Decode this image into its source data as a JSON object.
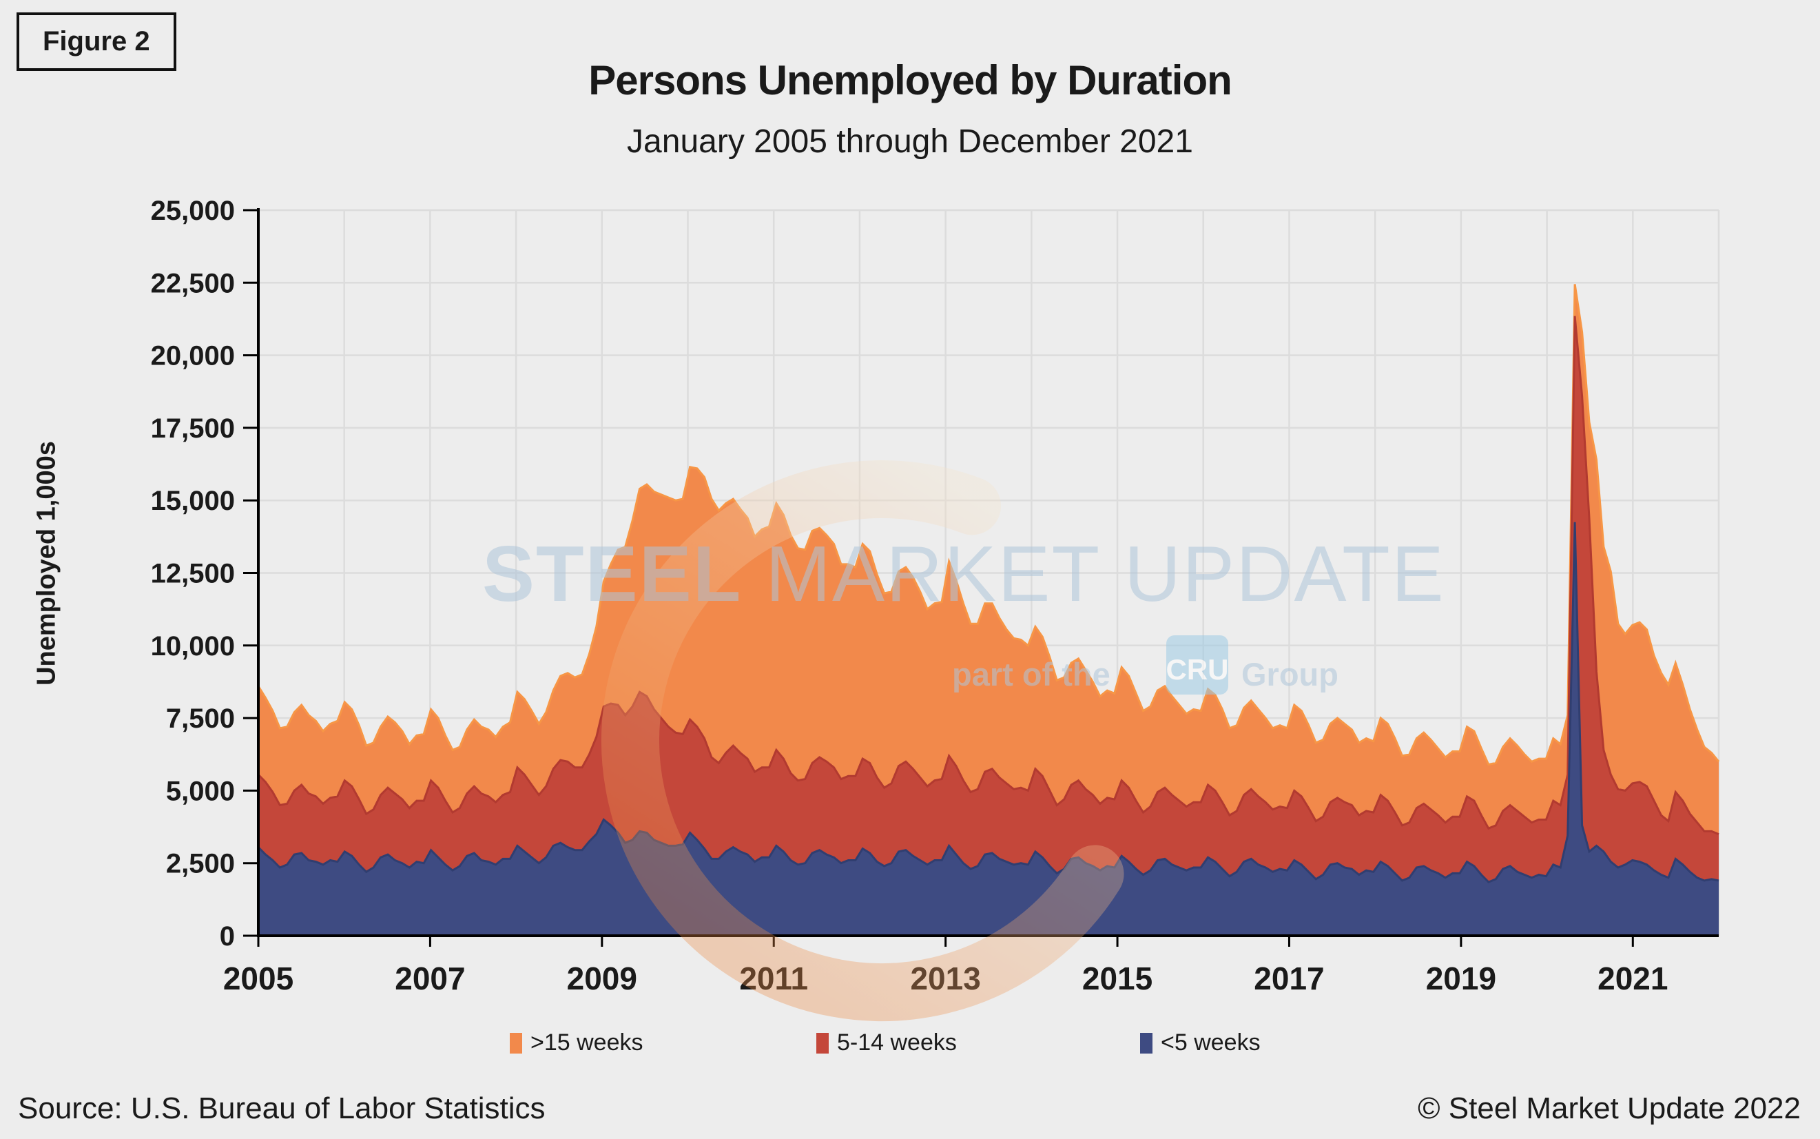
{
  "figure_label": "Figure 2",
  "title": "Persons Unemployed by Duration",
  "subtitle": "January 2005 through December 2021",
  "y_axis": {
    "title": "Unemployed 1,000s"
  },
  "legend": [
    {
      "label": ">15 weeks",
      "color": "#F2894B"
    },
    {
      "label": "5-14 weeks",
      "color": "#C4473A"
    },
    {
      "label": "<5 weeks",
      "color": "#3E4B82"
    }
  ],
  "watermark": {
    "steel": "STEEL",
    "market": "MARKET",
    "update": "UPDATE",
    "part_of": "part of the",
    "cru": "CRU",
    "group": "Group",
    "text_color": "#AFC6DA",
    "cru_box_color": "#9ECBE4",
    "crescent_top_color": "#F4E3CC",
    "crescent_bottom_color": "#EC8A44"
  },
  "footer": {
    "source": "Source: U.S. Bureau of Labor Statistics",
    "copyright": "© Steel Market Update 2022"
  },
  "chart_data": {
    "type": "area",
    "stacked": true,
    "x_start": "2005-01",
    "x_end": "2021-12",
    "months_per_year": 12,
    "years": 17,
    "ylim": [
      0,
      25000
    ],
    "y_tick_step": 2500,
    "grid": true,
    "legend_position": "bottom",
    "x_tick_labels": [
      "2005",
      "2007",
      "2009",
      "2011",
      "2013",
      "2015",
      "2017",
      "2019",
      "2021"
    ],
    "x_tick_years_from_start": [
      0,
      2,
      4,
      6,
      8,
      10,
      12,
      14,
      16
    ],
    "colors": {
      "grid": "#DCDCDC",
      "axis": "#000000",
      "background": "#EDEDED"
    },
    "series": [
      {
        "name": "<5 weeks",
        "fill": "#3E4B82",
        "stroke": "#303E70",
        "values": [
          3050,
          2800,
          2600,
          2350,
          2450,
          2800,
          2850,
          2600,
          2550,
          2450,
          2600,
          2550,
          2900,
          2750,
          2450,
          2200,
          2350,
          2700,
          2800,
          2600,
          2500,
          2350,
          2550,
          2500,
          2950,
          2700,
          2450,
          2250,
          2400,
          2750,
          2850,
          2600,
          2550,
          2450,
          2650,
          2650,
          3100,
          2900,
          2700,
          2500,
          2700,
          3100,
          3200,
          3050,
          2950,
          2950,
          3250,
          3500,
          4000,
          3800,
          3550,
          3200,
          3300,
          3600,
          3550,
          3300,
          3200,
          3100,
          3100,
          3150,
          3550,
          3300,
          3000,
          2650,
          2650,
          2900,
          3050,
          2900,
          2800,
          2550,
          2700,
          2700,
          3100,
          2900,
          2600,
          2450,
          2500,
          2850,
          2950,
          2800,
          2700,
          2500,
          2600,
          2600,
          3000,
          2850,
          2550,
          2400,
          2500,
          2900,
          2950,
          2750,
          2600,
          2450,
          2600,
          2600,
          3100,
          2800,
          2500,
          2300,
          2400,
          2800,
          2850,
          2650,
          2550,
          2450,
          2500,
          2450,
          2900,
          2700,
          2400,
          2150,
          2300,
          2650,
          2700,
          2500,
          2400,
          2250,
          2400,
          2350,
          2750,
          2550,
          2300,
          2100,
          2250,
          2600,
          2650,
          2450,
          2350,
          2250,
          2350,
          2350,
          2700,
          2550,
          2300,
          2050,
          2200,
          2550,
          2650,
          2450,
          2350,
          2200,
          2300,
          2250,
          2600,
          2450,
          2200,
          1950,
          2100,
          2450,
          2500,
          2350,
          2300,
          2100,
          2250,
          2200,
          2550,
          2400,
          2150,
          1900,
          2000,
          2350,
          2400,
          2250,
          2150,
          2000,
          2150,
          2150,
          2550,
          2400,
          2100,
          1850,
          1950,
          2300,
          2400,
          2200,
          2100,
          2000,
          2100,
          2050,
          2450,
          2350,
          3450,
          14250,
          3800,
          2900,
          3100,
          2900,
          2550,
          2350,
          2450,
          2600,
          2550,
          2450,
          2250,
          2100,
          2000,
          2650,
          2450,
          2200,
          2000,
          1900,
          1950,
          1900
        ]
      },
      {
        "name": "5-14 weeks",
        "fill": "#C4473A",
        "stroke": "#B23A30",
        "values": [
          2500,
          2500,
          2350,
          2150,
          2100,
          2200,
          2350,
          2300,
          2250,
          2100,
          2150,
          2250,
          2450,
          2400,
          2250,
          2000,
          2000,
          2150,
          2300,
          2300,
          2200,
          2050,
          2100,
          2150,
          2400,
          2400,
          2200,
          2000,
          2000,
          2150,
          2300,
          2300,
          2250,
          2150,
          2200,
          2300,
          2700,
          2650,
          2500,
          2350,
          2450,
          2650,
          2850,
          2950,
          2850,
          2850,
          3000,
          3350,
          3900,
          4200,
          4400,
          4400,
          4600,
          4800,
          4700,
          4500,
          4300,
          4100,
          3900,
          3800,
          3900,
          3900,
          3800,
          3500,
          3300,
          3400,
          3500,
          3400,
          3300,
          3100,
          3100,
          3100,
          3300,
          3200,
          3000,
          2900,
          2900,
          3100,
          3200,
          3200,
          3100,
          2900,
          2900,
          2900,
          3100,
          3100,
          2900,
          2700,
          2750,
          2950,
          3050,
          3000,
          2850,
          2700,
          2750,
          2800,
          3100,
          3050,
          2850,
          2650,
          2650,
          2850,
          2900,
          2800,
          2700,
          2600,
          2600,
          2550,
          2850,
          2800,
          2600,
          2350,
          2400,
          2550,
          2650,
          2550,
          2450,
          2300,
          2350,
          2350,
          2600,
          2550,
          2350,
          2150,
          2200,
          2350,
          2450,
          2400,
          2300,
          2200,
          2250,
          2250,
          2500,
          2450,
          2300,
          2100,
          2100,
          2300,
          2400,
          2350,
          2250,
          2150,
          2150,
          2150,
          2400,
          2350,
          2200,
          2000,
          2000,
          2150,
          2250,
          2250,
          2200,
          2050,
          2050,
          2050,
          2300,
          2250,
          2100,
          1900,
          1900,
          2050,
          2150,
          2100,
          2000,
          1900,
          1950,
          1950,
          2250,
          2250,
          2050,
          1850,
          1850,
          2000,
          2100,
          2100,
          2000,
          1900,
          1900,
          1950,
          2200,
          2150,
          2100,
          7100,
          14800,
          11500,
          6000,
          3500,
          3000,
          2700,
          2550,
          2650,
          2750,
          2700,
          2400,
          2050,
          1950,
          2300,
          2200,
          2000,
          1900,
          1700,
          1650,
          1600
        ]
      },
      {
        "name": ">15 weeks",
        "fill": "#F2894B",
        "stroke": "#F79646",
        "values": [
          3050,
          2900,
          2800,
          2650,
          2650,
          2700,
          2750,
          2700,
          2600,
          2500,
          2550,
          2600,
          2700,
          2650,
          2550,
          2350,
          2300,
          2350,
          2450,
          2450,
          2350,
          2200,
          2250,
          2300,
          2450,
          2400,
          2250,
          2150,
          2100,
          2200,
          2300,
          2300,
          2300,
          2250,
          2350,
          2400,
          2600,
          2600,
          2550,
          2450,
          2550,
          2700,
          2900,
          3050,
          3100,
          3200,
          3450,
          3800,
          4300,
          4800,
          5350,
          5800,
          6400,
          7000,
          7300,
          7500,
          7700,
          7900,
          8000,
          8100,
          8700,
          8900,
          9000,
          8900,
          8700,
          8600,
          8500,
          8400,
          8300,
          8100,
          8200,
          8300,
          8500,
          8400,
          8200,
          8000,
          7900,
          8000,
          7900,
          7800,
          7700,
          7400,
          7300,
          7200,
          7400,
          7300,
          7000,
          6700,
          6600,
          6700,
          6700,
          6600,
          6400,
          6100,
          6100,
          6100,
          6700,
          6400,
          6100,
          5800,
          5700,
          5800,
          5700,
          5500,
          5300,
          5200,
          5100,
          5000,
          4900,
          4800,
          4600,
          4300,
          4200,
          4200,
          4200,
          4100,
          3900,
          3700,
          3700,
          3650,
          3900,
          3850,
          3700,
          3500,
          3450,
          3500,
          3500,
          3400,
          3300,
          3200,
          3200,
          3150,
          3300,
          3300,
          3200,
          3000,
          2950,
          3000,
          3050,
          3000,
          2900,
          2800,
          2800,
          2750,
          2950,
          2950,
          2850,
          2700,
          2650,
          2700,
          2750,
          2700,
          2600,
          2500,
          2500,
          2450,
          2650,
          2650,
          2550,
          2400,
          2350,
          2400,
          2450,
          2400,
          2300,
          2250,
          2250,
          2250,
          2400,
          2400,
          2300,
          2200,
          2150,
          2200,
          2300,
          2250,
          2150,
          2100,
          2100,
          2100,
          2150,
          2100,
          2050,
          1100,
          2200,
          3300,
          7300,
          7000,
          7000,
          5700,
          5400,
          5450,
          5500,
          5400,
          5000,
          4900,
          4700,
          4450,
          4000,
          3600,
          3200,
          2900,
          2700,
          2500
        ]
      }
    ]
  }
}
